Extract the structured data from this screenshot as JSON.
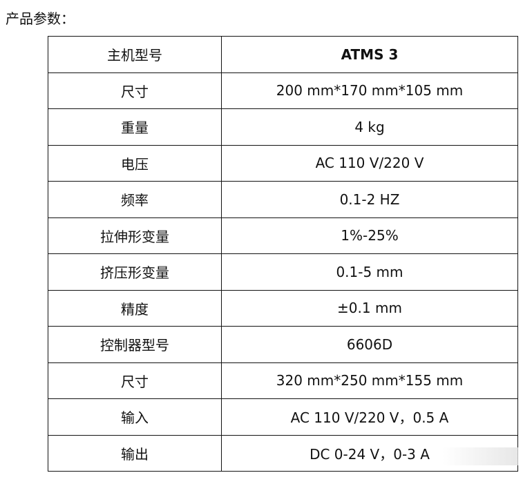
{
  "heading": "产品参数：",
  "rows": [
    {
      "label": "主机型号",
      "value": "ATMS 3"
    },
    {
      "label": "尺寸",
      "value": "200 mm*170 mm*105 mm"
    },
    {
      "label": "重量",
      "value": "4 kg"
    },
    {
      "label": "电压",
      "value": "AC 110 V/220 V"
    },
    {
      "label": "频率",
      "value": "0.1-2 HZ"
    },
    {
      "label": "拉伸形变量",
      "value": "1%-25%"
    },
    {
      "label": "挤压形变量",
      "value": "0.1-5 mm"
    },
    {
      "label": "精度",
      "value": "±0.1 mm"
    },
    {
      "label": "控制器型号",
      "value": "6606D"
    },
    {
      "label": "尺寸",
      "value": "320 mm*250 mm*155 mm"
    },
    {
      "label": "输入",
      "value": "AC 110 V/220 V，0.5 A"
    },
    {
      "label": "输出",
      "value": "DC 0-24 V，0-3 A"
    }
  ]
}
